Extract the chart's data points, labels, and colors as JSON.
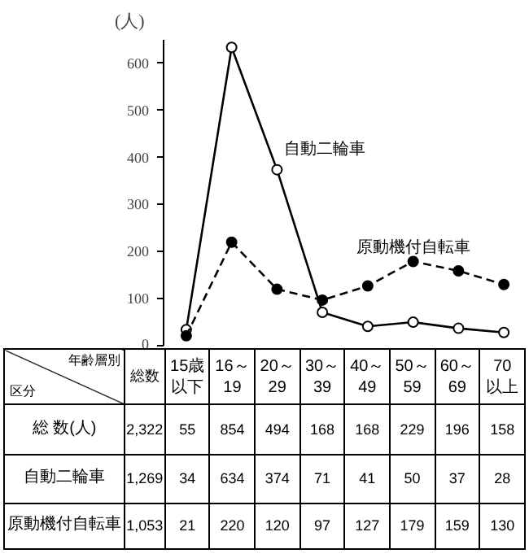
{
  "chart_data": {
    "type": "line",
    "ylabel": "(人)",
    "categories": [
      "15歳以下",
      "16～19",
      "20～29",
      "30～39",
      "40～49",
      "50～59",
      "60～69",
      "70以上"
    ],
    "series": [
      {
        "name": "自動二輪車",
        "color": "#000000",
        "values": [
          34,
          634,
          374,
          71,
          41,
          50,
          37,
          28
        ],
        "marker": "circle",
        "line_style": "solid"
      },
      {
        "name": "原動機付自転車",
        "color": "#000000",
        "values": [
          21,
          220,
          120,
          97,
          127,
          179,
          159,
          130
        ],
        "marker": "circle",
        "line_style": "dashed"
      }
    ],
    "ylim": [
      0,
      650
    ],
    "yticks": [
      0,
      100,
      200,
      300,
      400,
      500,
      600
    ],
    "tick_labels": "y",
    "grid": false,
    "legend": false,
    "data_labels": true,
    "totals": [
      "55",
      "854",
      "494",
      "168",
      "168",
      "229",
      "196",
      "158"
    ],
    "annotations": [
      "総数",
      "年齢層別",
      "区分",
      "総 数(人)",
      "2,322",
      "1,269",
      "1,053"
    ]
  }
}
